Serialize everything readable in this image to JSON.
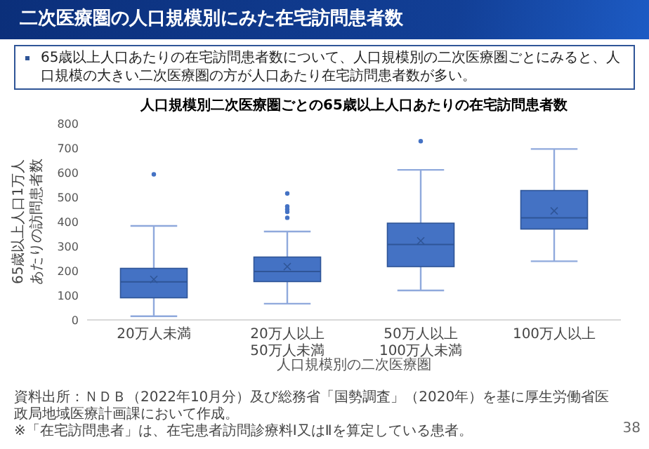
{
  "chart_data": {
    "type": "box",
    "title": "二次医療圏の人口規模別にみた在宅訪問患者数",
    "subtitle": "人口規模別二次医療圏ごとの65歳以上人口あたりの在宅訪問患者数",
    "xlabel": "人口規模別の二次医療圏",
    "ylabel": "65歳以上人口1万人あたりの訪問患者数",
    "categories": [
      "20万人未満",
      "20万人以上\n50万人未満",
      "50万人以上\n100万人未満",
      "100万人以上"
    ],
    "color": "#4472c4",
    "boxes": [
      {
        "low": 15,
        "q1": 90,
        "median": 155,
        "q3": 210,
        "high": 383,
        "mean": 165,
        "outliers": [
          593
        ]
      },
      {
        "low": 66,
        "q1": 156,
        "median": 197,
        "q3": 256,
        "high": 360,
        "mean": 217,
        "outliers": [
          416,
          440,
          451,
          462,
          515
        ]
      },
      {
        "low": 120,
        "q1": 217,
        "median": 307,
        "q3": 394,
        "high": 611,
        "mean": 322,
        "outliers": [
          728
        ]
      },
      {
        "low": 239,
        "q1": 370,
        "median": 416,
        "q3": 527,
        "high": 696,
        "mean": 444
      }
    ],
    "ylim": [
      0,
      800
    ],
    "yticks": [
      0,
      100,
      200,
      300,
      400,
      500,
      600,
      700,
      800
    ],
    "annotations": [
      "65歳以上人口あたりの在宅訪問患者数について、人口規模別の二次医療圏ごとにみると、人口規模の大きい二次医療圏の方が人口あたり在宅訪問患者数が多い。",
      "資料出所：ＮＤＢ（2022年10月分）及び総務省「国勢調査」（2020年）を基に厚生労働省医政局地域医療計画課において作成。",
      "※「在宅訪問患者」は、在宅患者訪問診療料Ⅰ又はⅡを算定している患者。",
      "38"
    ]
  }
}
